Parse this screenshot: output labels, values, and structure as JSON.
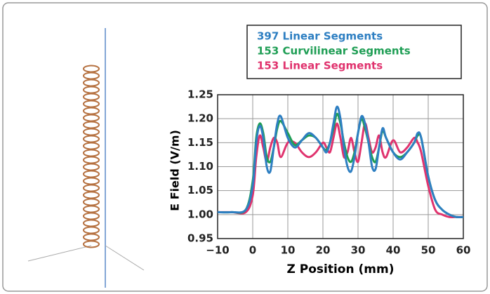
{
  "chart_data": {
    "type": "line",
    "x_label": "Z Position (mm)",
    "y_label": "E Field (V/m)",
    "x": [
      -10,
      -6,
      -2,
      0,
      1,
      2,
      3,
      4,
      5,
      6,
      7,
      8,
      10,
      12,
      14,
      16,
      18,
      20,
      21,
      22,
      23,
      24,
      25,
      26,
      27,
      28,
      29,
      30,
      31,
      32,
      33,
      34,
      35,
      36,
      37,
      38,
      40,
      42,
      44,
      46,
      47,
      48,
      50,
      52,
      54,
      56,
      58,
      60
    ],
    "series": [
      {
        "name": "397 Linear Segments",
        "color": "#2e7fc2",
        "values": [
          1.005,
          1.005,
          1.01,
          1.06,
          1.15,
          1.185,
          1.16,
          1.1,
          1.09,
          1.14,
          1.19,
          1.205,
          1.16,
          1.14,
          1.155,
          1.17,
          1.16,
          1.14,
          1.13,
          1.15,
          1.19,
          1.225,
          1.2,
          1.14,
          1.1,
          1.09,
          1.12,
          1.17,
          1.205,
          1.19,
          1.15,
          1.1,
          1.095,
          1.14,
          1.18,
          1.16,
          1.13,
          1.115,
          1.13,
          1.15,
          1.17,
          1.16,
          1.08,
          1.03,
          1.01,
          1.0,
          0.995,
          0.995
        ]
      },
      {
        "name": "153 Curvilinear Segments",
        "color": "#1f9e55",
        "values": [
          1.005,
          1.005,
          1.01,
          1.07,
          1.16,
          1.19,
          1.17,
          1.12,
          1.11,
          1.14,
          1.18,
          1.195,
          1.17,
          1.145,
          1.155,
          1.165,
          1.16,
          1.14,
          1.135,
          1.15,
          1.18,
          1.21,
          1.19,
          1.15,
          1.12,
          1.11,
          1.13,
          1.17,
          1.2,
          1.18,
          1.15,
          1.12,
          1.11,
          1.14,
          1.175,
          1.16,
          1.13,
          1.12,
          1.13,
          1.15,
          1.165,
          1.16,
          1.08,
          1.03,
          1.01,
          1.0,
          0.995,
          0.995
        ]
      },
      {
        "name": "153 Linear Segments",
        "color": "#e0336e",
        "values": [
          1.005,
          1.005,
          1.005,
          1.04,
          1.12,
          1.165,
          1.14,
          1.11,
          1.14,
          1.16,
          1.15,
          1.12,
          1.15,
          1.15,
          1.13,
          1.12,
          1.13,
          1.15,
          1.14,
          1.13,
          1.16,
          1.19,
          1.16,
          1.12,
          1.13,
          1.16,
          1.13,
          1.11,
          1.15,
          1.19,
          1.16,
          1.13,
          1.14,
          1.165,
          1.13,
          1.12,
          1.155,
          1.13,
          1.14,
          1.16,
          1.15,
          1.13,
          1.06,
          1.01,
          1.0,
          0.995,
          0.995,
          0.995
        ]
      }
    ],
    "xlim": [
      -10,
      60
    ],
    "xticks": [
      {
        "value": -10,
        "label": "−10"
      },
      0,
      10,
      20,
      30,
      40,
      50,
      60
    ],
    "ylim": [
      0.95,
      1.25
    ],
    "yticks": [
      0.95,
      {
        "value": 1,
        "label": "1.00"
      },
      1.05,
      {
        "value": 1.1,
        "label": "1.10"
      },
      1.15,
      {
        "value": 1.2,
        "label": "1.20"
      },
      1.25
    ],
    "grid": true
  }
}
